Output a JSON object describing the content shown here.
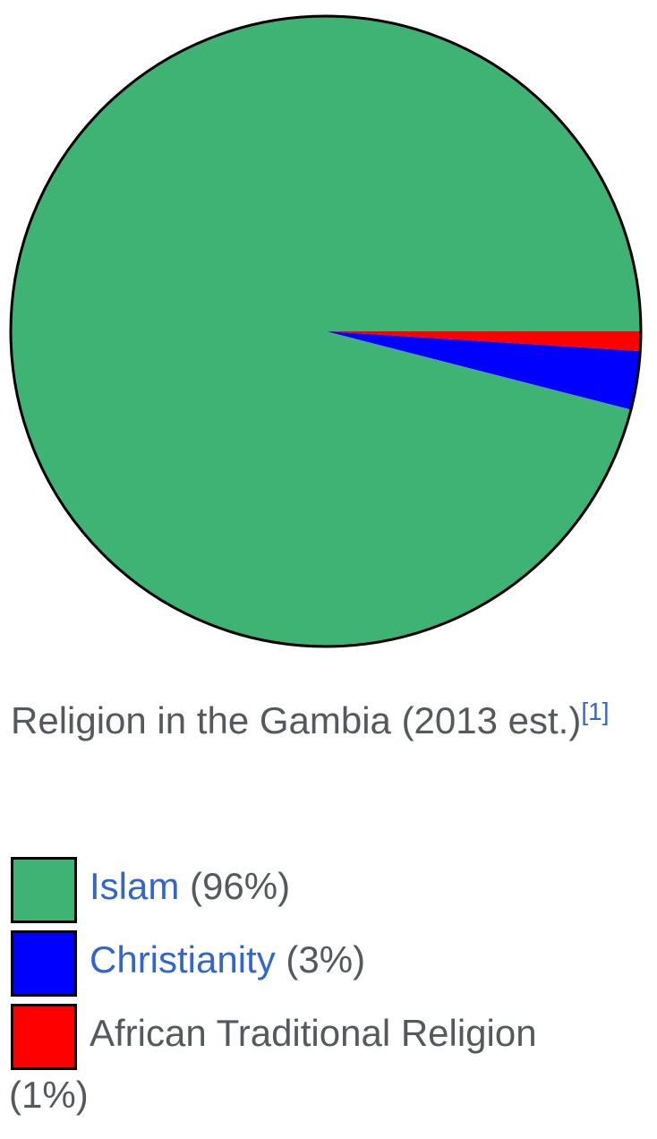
{
  "chart_data": {
    "type": "pie",
    "title": "Religion in the Gambia (2013 est.)",
    "citation": "[1]",
    "series": [
      {
        "name": "Islam",
        "value": 96,
        "color": "#3eb373",
        "linked": true
      },
      {
        "name": "Christianity",
        "value": 3,
        "color": "#0000ff",
        "linked": true
      },
      {
        "name": "African Traditional Religion",
        "value": 1,
        "color": "#ff0000",
        "linked": false
      }
    ],
    "legend_placement": "bottom"
  },
  "legend": [
    {
      "label": "Islam",
      "pct": "(96%)"
    },
    {
      "label": "Christianity",
      "pct": "(3%)"
    },
    {
      "label": "African Traditional Religion",
      "pct": "(1%)"
    }
  ],
  "caption": {
    "text": "Religion in the Gambia (2013 est.)",
    "cite": "[1]"
  }
}
